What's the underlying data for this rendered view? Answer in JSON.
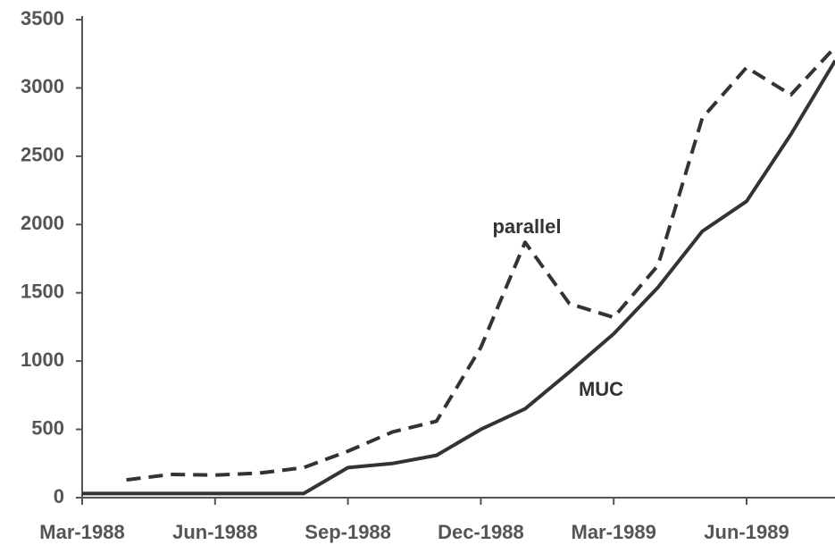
{
  "chart_data": {
    "type": "line",
    "categories": [
      "Mar-1988",
      null,
      null,
      "Jun-1988",
      null,
      null,
      "Sep-1988",
      null,
      null,
      "Dec-1988",
      null,
      null,
      "Mar-1989",
      null,
      null,
      "Jun-1989",
      null,
      null
    ],
    "series": [
      {
        "name": "MUC",
        "color": "#333333",
        "dashed": false,
        "values": [
          30,
          30,
          30,
          30,
          30,
          30,
          220,
          250,
          310,
          500,
          650,
          920,
          1200,
          1540,
          1950,
          2170,
          2660,
          3200
        ]
      },
      {
        "name": "parallel",
        "color": "#333333",
        "dashed": true,
        "values": [
          null,
          130,
          170,
          165,
          180,
          220,
          340,
          480,
          560,
          1100,
          1870,
          1420,
          1320,
          1700,
          2780,
          3150,
          2950,
          3300
        ]
      }
    ],
    "ylim": [
      0,
      3500
    ],
    "yticks": [
      0,
      500,
      1000,
      1500,
      2000,
      2500,
      3000,
      3500
    ],
    "annotations": [
      "parallel",
      "MUC"
    ],
    "grid": false
  }
}
